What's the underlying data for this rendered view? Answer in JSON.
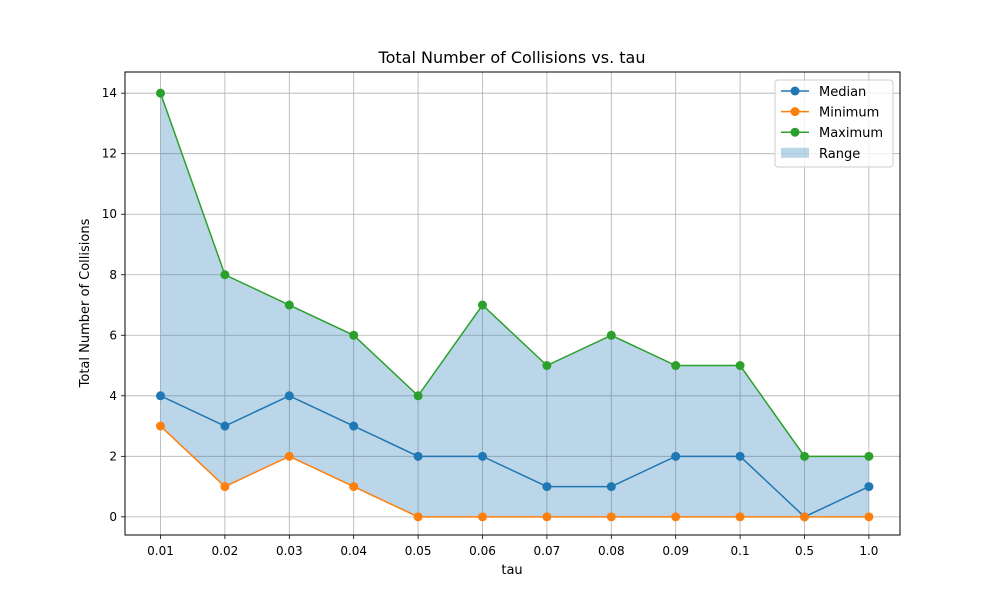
{
  "chart_data": {
    "type": "line",
    "title": "Total Number of Collisions vs. tau",
    "xlabel": "tau",
    "ylabel": "Total Number of Collisions",
    "categories": [
      "0.01",
      "0.02",
      "0.03",
      "0.04",
      "0.05",
      "0.06",
      "0.07",
      "0.08",
      "0.09",
      "0.1",
      "0.5",
      "1.0"
    ],
    "ylim": [
      -0.6,
      14.7
    ],
    "yticks": [
      0,
      2,
      4,
      6,
      8,
      10,
      12,
      14
    ],
    "grid": true,
    "legend_position": "top-right",
    "series": [
      {
        "name": "Median",
        "color": "#1f77b4",
        "values": [
          4,
          3,
          4,
          3,
          2,
          2,
          1,
          1,
          2,
          2,
          0,
          1
        ]
      },
      {
        "name": "Minimum",
        "color": "#ff7f0e",
        "values": [
          3,
          1,
          2,
          1,
          0,
          0,
          0,
          0,
          0,
          0,
          0,
          0
        ]
      },
      {
        "name": "Maximum",
        "color": "#2ca02c",
        "values": [
          14,
          8,
          7,
          6,
          4,
          7,
          5,
          6,
          5,
          5,
          2,
          2
        ]
      }
    ],
    "range": {
      "name": "Range",
      "color": "#1f77b4",
      "opacity": 0.3,
      "lower": "Minimum",
      "upper": "Maximum"
    }
  }
}
